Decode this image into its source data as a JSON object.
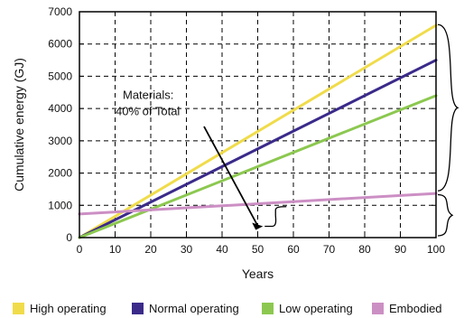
{
  "chart_data": {
    "type": "line",
    "title": "",
    "xlabel": "Years",
    "ylabel": "Cumulative energy (GJ)",
    "xlim": [
      0,
      100
    ],
    "ylim": [
      0,
      7000
    ],
    "x_ticks": [
      0,
      10,
      20,
      30,
      40,
      50,
      60,
      70,
      80,
      90,
      100
    ],
    "y_ticks": [
      0,
      1000,
      2000,
      3000,
      4000,
      5000,
      6000,
      7000
    ],
    "grid": true,
    "grid_style": "dashed",
    "legend_position": "bottom",
    "series": [
      {
        "name": "High operating",
        "color": "#f0dc4b",
        "x": [
          0,
          100
        ],
        "y": [
          0,
          6580
        ]
      },
      {
        "name": "Normal operating",
        "color": "#3b2a8a",
        "x": [
          0,
          100
        ],
        "y": [
          0,
          5500
        ]
      },
      {
        "name": "Low operating",
        "color": "#8cc850",
        "x": [
          0,
          100
        ],
        "y": [
          0,
          4400
        ]
      },
      {
        "name": "Embodied",
        "color": "#cc8fc4",
        "x": [
          0,
          100
        ],
        "y": [
          730,
          1370
        ]
      }
    ],
    "annotations": [
      {
        "text_lines": [
          "Materials:",
          "40% of Total"
        ],
        "arrow_to": {
          "x": 55,
          "y": 350
        }
      }
    ]
  }
}
